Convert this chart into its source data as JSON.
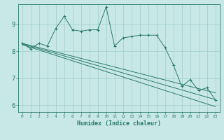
{
  "xlabel": "Humidex (Indice chaleur)",
  "bg_color": "#c8e8e8",
  "grid_color": "#a0cccc",
  "line_color": "#2a7a6a",
  "xlim": [
    -0.5,
    23.5
  ],
  "ylim": [
    5.75,
    9.75
  ],
  "yticks": [
    6,
    7,
    8,
    9
  ],
  "xticks": [
    0,
    1,
    2,
    3,
    4,
    5,
    6,
    7,
    8,
    9,
    10,
    11,
    12,
    13,
    14,
    15,
    16,
    17,
    18,
    19,
    20,
    21,
    22,
    23
  ],
  "series_main": [
    8.3,
    8.1,
    8.3,
    8.2,
    8.85,
    9.3,
    8.8,
    8.75,
    8.8,
    8.8,
    9.65,
    8.2,
    8.5,
    8.55,
    8.6,
    8.6,
    8.6,
    8.15,
    7.5,
    6.7,
    6.95,
    6.55,
    6.65,
    6.2
  ],
  "series_line1": [
    8.3,
    8.22,
    8.14,
    8.06,
    7.98,
    7.9,
    7.82,
    7.74,
    7.66,
    7.58,
    7.5,
    7.42,
    7.34,
    7.26,
    7.18,
    7.1,
    7.02,
    6.94,
    6.86,
    6.78,
    6.7,
    6.62,
    6.54,
    6.46
  ],
  "series_line2": [
    8.28,
    8.19,
    8.1,
    8.01,
    7.92,
    7.83,
    7.74,
    7.65,
    7.56,
    7.47,
    7.38,
    7.29,
    7.2,
    7.11,
    7.02,
    6.93,
    6.84,
    6.75,
    6.66,
    6.57,
    6.48,
    6.39,
    6.3,
    6.21
  ],
  "series_line3": [
    8.25,
    8.15,
    8.05,
    7.95,
    7.85,
    7.75,
    7.65,
    7.55,
    7.45,
    7.35,
    7.25,
    7.15,
    7.05,
    6.95,
    6.85,
    6.75,
    6.65,
    6.55,
    6.45,
    6.35,
    6.25,
    6.15,
    6.05,
    5.95
  ]
}
